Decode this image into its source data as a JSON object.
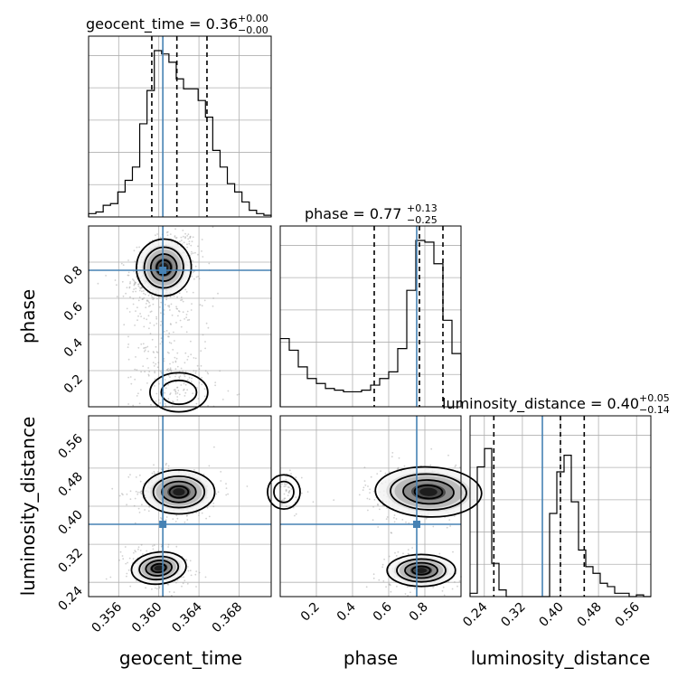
{
  "chart_data": {
    "type": "corner",
    "parameters": [
      "geocent_time",
      "phase",
      "luminosity_distance"
    ],
    "axis_labels": {
      "geocent_time": "geocent_time",
      "phase": "phase",
      "luminosity_distance": "luminosity_distance"
    },
    "titles": [
      {
        "param": "geocent_time",
        "text": "geocent_time = 0.36",
        "sup": "+0.00",
        "sub": "−0.00"
      },
      {
        "param": "phase",
        "text": "phase = 0.77",
        "sup": "+0.13",
        "sub": "−0.25"
      },
      {
        "param": "luminosity_distance",
        "text": "luminosity_distance = 0.40",
        "sup": "+0.05",
        "sub": "−0.14"
      }
    ],
    "ranges": {
      "geocent_time": [
        0.353,
        0.3712
      ],
      "phase": [
        0.0,
        1.0
      ],
      "luminosity_distance": [
        0.21,
        0.59
      ]
    },
    "ticks": {
      "geocent_time": {
        "values": [
          0.356,
          0.36,
          0.364,
          0.368
        ],
        "labels": [
          "0.356",
          "0.360",
          "0.364",
          "0.368"
        ]
      },
      "phase": {
        "values": [
          0.2,
          0.4,
          0.6,
          0.8
        ],
        "labels": [
          "0.2",
          "0.4",
          "0.6",
          "0.8"
        ]
      },
      "luminosity_distance": {
        "values": [
          0.24,
          0.32,
          0.4,
          0.48,
          0.56
        ],
        "labels": [
          "0.24",
          "0.32",
          "0.40",
          "0.48",
          "0.56"
        ]
      }
    },
    "truths": {
      "geocent_time": 0.3604,
      "phase": 0.755,
      "luminosity_distance": 0.362
    },
    "quantiles": {
      "geocent_time": [
        0.3593,
        0.3618,
        0.3648
      ],
      "phase": [
        0.52,
        0.77,
        0.9
      ],
      "luminosity_distance": [
        0.26,
        0.4,
        0.45
      ]
    },
    "histograms": {
      "geocent_time": [
        0.02,
        0.03,
        0.07,
        0.08,
        0.15,
        0.22,
        0.3,
        0.56,
        0.76,
        1.0,
        0.98,
        0.93,
        0.83,
        0.77,
        0.77,
        0.7,
        0.6,
        0.4,
        0.3,
        0.2,
        0.15,
        0.09,
        0.04,
        0.02,
        0.01
      ],
      "phase": [
        0.41,
        0.34,
        0.24,
        0.17,
        0.14,
        0.11,
        0.1,
        0.09,
        0.09,
        0.1,
        0.13,
        0.17,
        0.21,
        0.35,
        0.7,
        1.0,
        0.99,
        0.86,
        0.52,
        0.32
      ],
      "luminosity_distance": [
        0.02,
        0.78,
        0.89,
        0.2,
        0.04,
        0.0,
        0.0,
        0.0,
        0.0,
        0.0,
        0.0,
        0.5,
        0.75,
        0.85,
        0.57,
        0.28,
        0.18,
        0.14,
        0.08,
        0.06,
        0.02,
        0.02,
        0.0,
        0.01,
        0.0
      ]
    },
    "grid": true,
    "colors": {
      "truth": "#4682b4",
      "lines": "#000000",
      "grid": "#b0b0b0",
      "points": "#999999"
    }
  }
}
